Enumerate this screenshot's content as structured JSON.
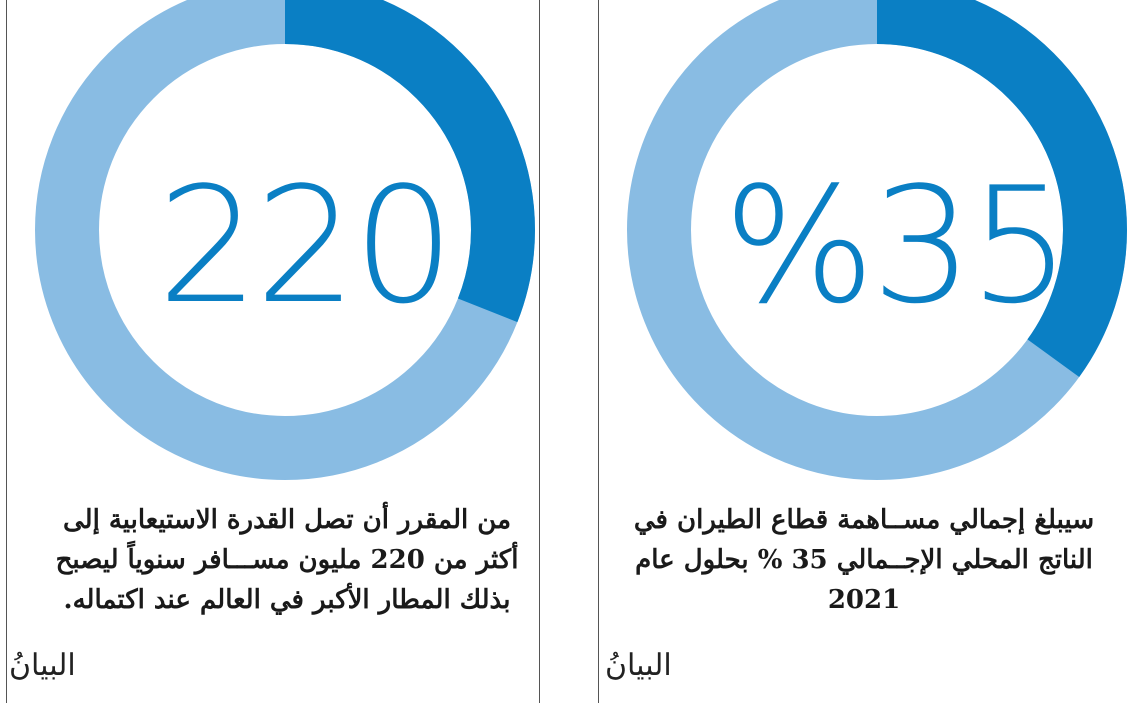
{
  "colors": {
    "progress": "#0a7fc4",
    "track": "#89bce3",
    "number": "#0a7fc4"
  },
  "left_card": {
    "big_number": "220",
    "progress_fraction": 0.31,
    "caption": "من المقرر أن تصل القدرة الاستيعابية إلى أكثر من 220 مليون مســـافر سنوياً ليصبح بذلك المطار الأكبر في العالم عند اكتماله.",
    "logo_text": "البيانُ"
  },
  "right_card": {
    "big_number": "%35",
    "progress_fraction": 0.35,
    "caption": "سيبلغ إجمالي مســاهمة قطاع الطيران في الناتج المحلي الإجــمالي 35 % بحلول عام 2021",
    "logo_text": "البيانُ"
  }
}
